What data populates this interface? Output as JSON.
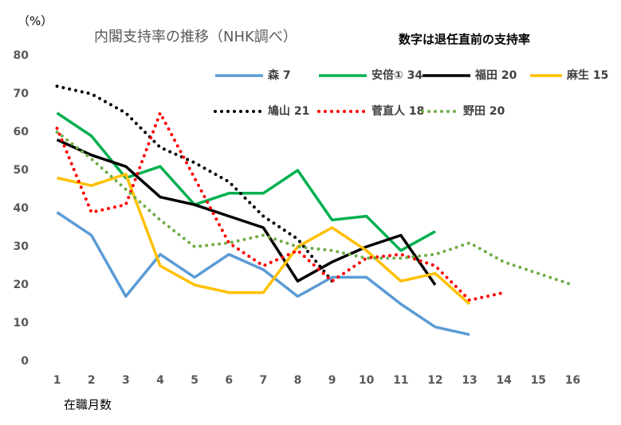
{
  "chart_data": {
    "type": "line",
    "title": "内閣支持率の推移（NHK調べ）",
    "annotation": "数字は退任直前の支持率",
    "y_label": "（%）",
    "x_label": "在職月数",
    "x": [
      1,
      2,
      3,
      4,
      5,
      6,
      7,
      8,
      9,
      10,
      11,
      12,
      13,
      14,
      15,
      16
    ],
    "xlim": [
      0.5,
      16.5
    ],
    "xticks": [
      1,
      2,
      3,
      4,
      5,
      6,
      7,
      8,
      9,
      10,
      11,
      12,
      13,
      14,
      15,
      16
    ],
    "ylim": [
      0,
      80
    ],
    "yticks": [
      0,
      10,
      20,
      30,
      40,
      50,
      60,
      70,
      80
    ],
    "grid": false,
    "series": [
      {
        "name": "森 7",
        "color": "#5b9bd5",
        "dotted": false,
        "values": [
          39,
          33,
          17,
          28,
          22,
          28,
          24,
          17,
          22,
          22,
          15,
          9,
          7,
          null,
          null,
          null
        ]
      },
      {
        "name": "安倍① 34",
        "color": "#00b050",
        "dotted": false,
        "values": [
          65,
          59,
          48,
          51,
          41,
          44,
          44,
          50,
          37,
          38,
          29,
          34,
          null,
          null,
          null,
          null
        ]
      },
      {
        "name": "福田 20",
        "color": "#000000",
        "dotted": false,
        "values": [
          58,
          54,
          51,
          43,
          41,
          38,
          35,
          21,
          26,
          30,
          33,
          20,
          null,
          null,
          null,
          null
        ]
      },
      {
        "name": "麻生 15",
        "color": "#ffc000",
        "dotted": false,
        "values": [
          48,
          46,
          49,
          25,
          20,
          18,
          18,
          30,
          35,
          29,
          21,
          23,
          15,
          null,
          null,
          null
        ]
      },
      {
        "name": "鳩山 21",
        "color": "#000000",
        "dotted": true,
        "values": [
          72,
          70,
          65,
          56,
          52,
          47,
          38,
          32,
          21,
          null,
          null,
          null,
          null,
          null,
          null,
          null
        ]
      },
      {
        "name": "菅直人 18",
        "color": "#ff0000",
        "dotted": true,
        "values": [
          61,
          39,
          41,
          65,
          48,
          31,
          25,
          29,
          21,
          27,
          28,
          25,
          16,
          18,
          null,
          null
        ]
      },
      {
        "name": "野田 20",
        "color": "#70ad47",
        "dotted": true,
        "values": [
          60,
          53,
          45,
          37,
          30,
          31,
          33,
          30,
          29,
          27,
          27,
          28,
          31,
          26,
          23,
          20
        ]
      }
    ]
  }
}
